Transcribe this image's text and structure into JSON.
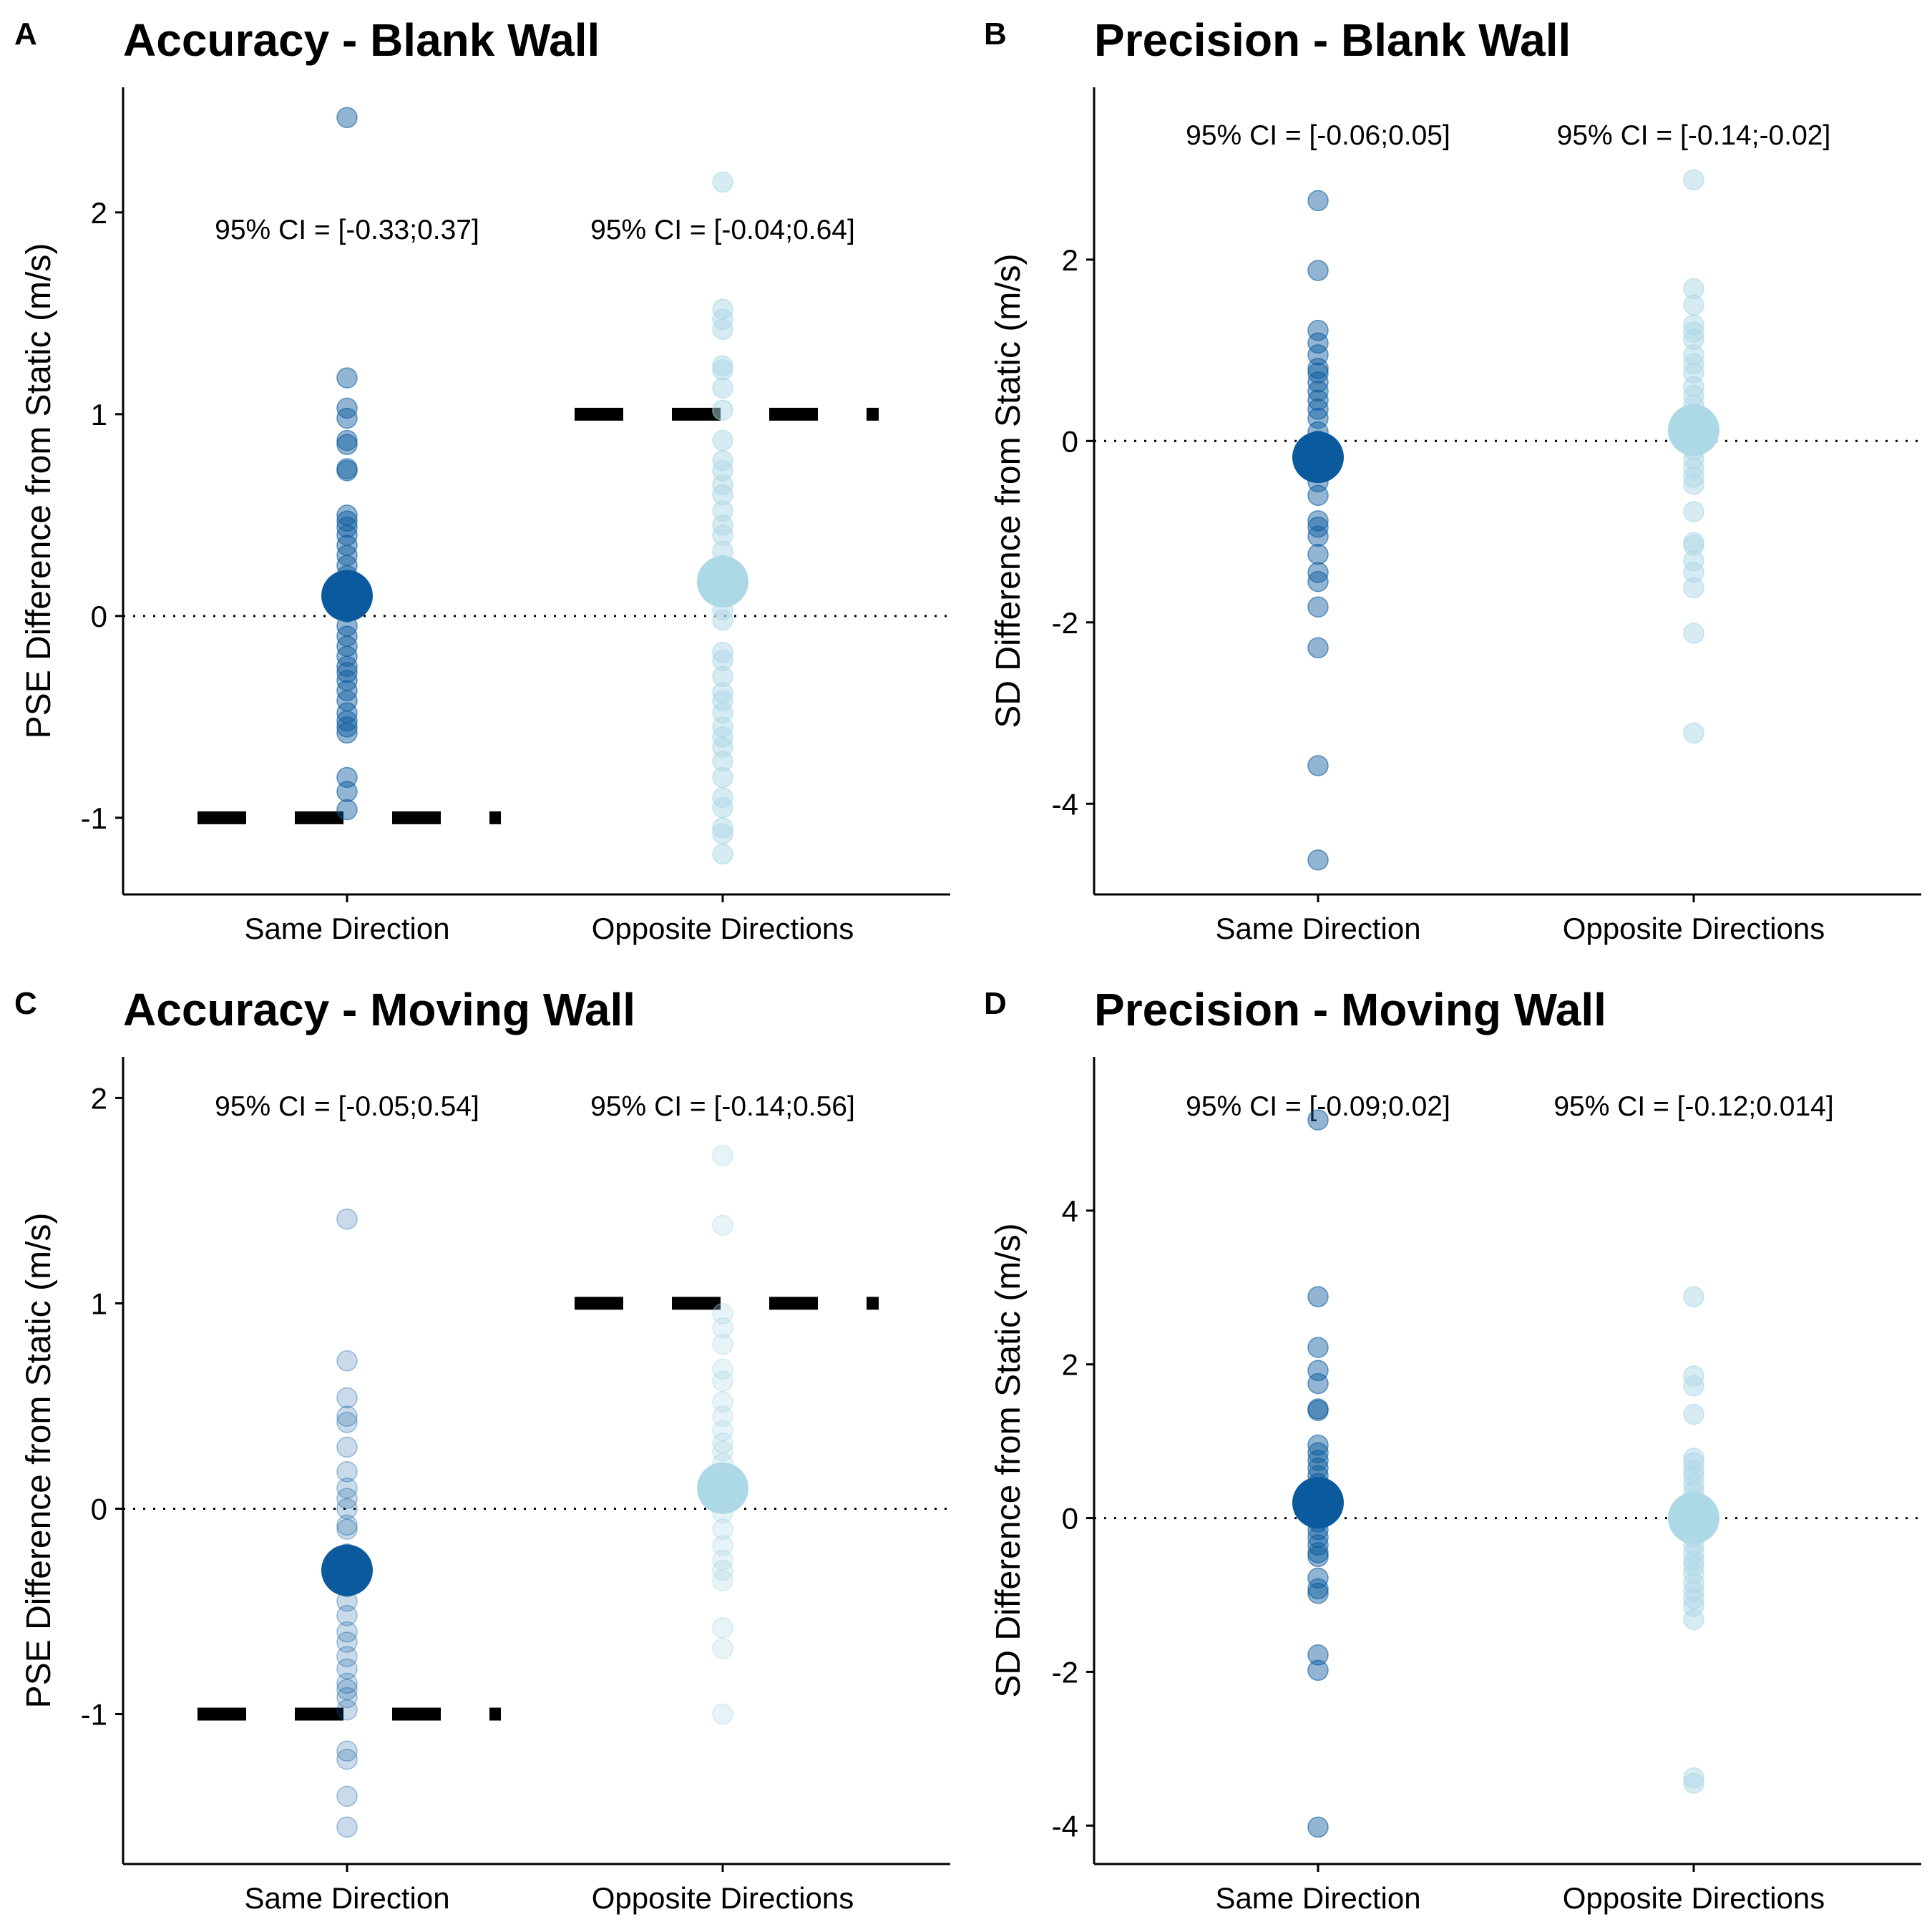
{
  "colors": {
    "same": "#0b5a9e",
    "opposite": "#add8e6"
  },
  "chart_data": [
    {
      "letter": "A",
      "title": "Accuracy - Blank Wall",
      "type": "scatter",
      "ylabel": "PSE Difference from Static (m/s)",
      "categories": [
        "Same Direction",
        "Opposite Directions"
      ],
      "ylim": [
        -1.38,
        2.62
      ],
      "yticks": [
        -1,
        0,
        1,
        2
      ],
      "zero_line": 0,
      "reference_lines": [
        {
          "category": "Same Direction",
          "y": -1
        },
        {
          "category": "Opposite Directions",
          "y": 1
        }
      ],
      "ci_labels": [
        "95% CI = [-0.33;0.37]",
        "95% CI = [-0.04;0.64]"
      ],
      "series": [
        {
          "category": "Same Direction",
          "color_key": "same",
          "point_opacity": 0.45,
          "mean": 0.1,
          "points": [
            2.47,
            1.18,
            1.03,
            0.98,
            0.87,
            0.85,
            0.73,
            0.72,
            0.5,
            0.47,
            0.44,
            0.4,
            0.35,
            0.3,
            0.25,
            0.2,
            0.15,
            0.1,
            0.05,
            0.02,
            -0.05,
            -0.1,
            -0.15,
            -0.2,
            -0.25,
            -0.28,
            -0.32,
            -0.37,
            -0.42,
            -0.48,
            -0.52,
            -0.55,
            -0.58,
            -0.8,
            -0.87,
            -0.96
          ]
        },
        {
          "category": "Opposite Directions",
          "color_key": "opposite",
          "point_opacity": 0.5,
          "mean": 0.17,
          "points": [
            2.15,
            1.52,
            1.47,
            1.42,
            1.24,
            1.22,
            1.13,
            1.02,
            0.87,
            0.77,
            0.72,
            0.65,
            0.6,
            0.52,
            0.45,
            0.4,
            0.32,
            0.25,
            0.15,
            0.1,
            0.03,
            -0.02,
            -0.18,
            -0.22,
            -0.3,
            -0.38,
            -0.42,
            -0.48,
            -0.55,
            -0.6,
            -0.65,
            -0.72,
            -0.8,
            -0.9,
            -0.95,
            -1.05,
            -1.08,
            -1.18
          ]
        }
      ]
    },
    {
      "letter": "B",
      "title": "Precision - Blank Wall",
      "type": "scatter",
      "ylabel": "SD Difference from Static (m/s)",
      "categories": [
        "Same Direction",
        "Opposite Directions"
      ],
      "ylim": [
        -5.0,
        3.9
      ],
      "yticks": [
        -4,
        -2,
        0,
        2
      ],
      "zero_line": 0,
      "reference_lines": [],
      "ci_labels": [
        "95% CI = [-0.06;0.05]",
        "95% CI = [-0.14;-0.02]"
      ],
      "series": [
        {
          "category": "Same Direction",
          "color_key": "same",
          "point_opacity": 0.45,
          "mean": -0.18,
          "points": [
            2.65,
            1.88,
            1.22,
            1.08,
            0.95,
            0.8,
            0.75,
            0.65,
            0.55,
            0.45,
            0.35,
            0.25,
            0.1,
            0.0,
            -0.1,
            -0.2,
            -0.35,
            -0.45,
            -0.6,
            -0.88,
            -0.95,
            -1.05,
            -1.25,
            -1.45,
            -1.55,
            -1.83,
            -2.28,
            -3.58,
            -4.62
          ]
        },
        {
          "category": "Opposite Directions",
          "color_key": "opposite",
          "point_opacity": 0.5,
          "mean": 0.12,
          "points": [
            2.88,
            1.68,
            1.5,
            1.28,
            1.2,
            1.12,
            0.95,
            0.85,
            0.75,
            0.6,
            0.5,
            0.4,
            0.3,
            0.2,
            0.05,
            -0.1,
            -0.2,
            -0.3,
            -0.4,
            -0.48,
            -0.78,
            -1.12,
            -1.15,
            -1.32,
            -1.45,
            -1.62,
            -2.12,
            -3.22
          ]
        }
      ]
    },
    {
      "letter": "C",
      "title": "Accuracy - Moving Wall",
      "type": "scatter",
      "ylabel": "PSE Difference from Static (m/s)",
      "categories": [
        "Same Direction",
        "Opposite Directions"
      ],
      "ylim": [
        -1.73,
        2.2
      ],
      "yticks": [
        -1,
        0,
        1,
        2
      ],
      "zero_line": 0,
      "reference_lines": [
        {
          "category": "Same Direction",
          "y": -1
        },
        {
          "category": "Opposite Directions",
          "y": 1
        }
      ],
      "ci_labels": [
        "95% CI = [-0.05;0.54]",
        "95% CI = [-0.14;0.56]"
      ],
      "series": [
        {
          "category": "Same Direction",
          "color_key": "same",
          "point_opacity": 0.22,
          "mean": -0.3,
          "points": [
            1.41,
            0.72,
            0.54,
            0.45,
            0.42,
            0.3,
            0.18,
            0.1,
            0.05,
            0.0,
            -0.08,
            -0.1,
            -0.22,
            -0.3,
            -0.38,
            -0.45,
            -0.52,
            -0.6,
            -0.65,
            -0.72,
            -0.78,
            -0.85,
            -0.88,
            -0.92,
            -0.98,
            -1.18,
            -1.22,
            -1.4,
            -1.55
          ]
        },
        {
          "category": "Opposite Directions",
          "color_key": "opposite",
          "point_opacity": 0.3,
          "mean": 0.1,
          "points": [
            1.72,
            1.38,
            0.95,
            0.88,
            0.8,
            0.68,
            0.62,
            0.52,
            0.45,
            0.38,
            0.32,
            0.28,
            0.22,
            0.15,
            0.1,
            0.05,
            -0.02,
            -0.1,
            -0.18,
            -0.25,
            -0.3,
            -0.35,
            -0.58,
            -0.68,
            -1.0
          ]
        }
      ]
    },
    {
      "letter": "D",
      "title": "Precision - Moving Wall",
      "type": "scatter",
      "ylabel": "SD Difference from Static (m/s)",
      "categories": [
        "Same Direction",
        "Opposite Directions"
      ],
      "ylim": [
        -4.5,
        6.0
      ],
      "yticks": [
        -4,
        -2,
        0,
        2,
        4
      ],
      "zero_line": 0,
      "reference_lines": [],
      "ci_labels": [
        "95% CI = [-0.09;0.02]",
        "95% CI = [-0.12;0.014]"
      ],
      "series": [
        {
          "category": "Same Direction",
          "color_key": "same",
          "point_opacity": 0.45,
          "mean": 0.2,
          "points": [
            5.18,
            2.88,
            2.22,
            1.92,
            1.75,
            1.42,
            1.4,
            0.95,
            0.85,
            0.75,
            0.65,
            0.55,
            0.45,
            0.35,
            0.25,
            0.15,
            0.05,
            -0.05,
            -0.15,
            -0.25,
            -0.35,
            -0.45,
            -0.5,
            -0.78,
            -0.92,
            -0.98,
            -1.78,
            -1.98,
            -4.02
          ]
        },
        {
          "category": "Opposite Directions",
          "color_key": "opposite",
          "point_opacity": 0.5,
          "mean": 0.0,
          "points": [
            2.88,
            1.85,
            1.72,
            1.35,
            0.78,
            0.72,
            0.62,
            0.55,
            0.45,
            0.35,
            0.25,
            0.15,
            0.05,
            -0.05,
            -0.15,
            -0.25,
            -0.35,
            -0.45,
            -0.55,
            -0.62,
            -0.72,
            -0.85,
            -0.95,
            -1.05,
            -1.15,
            -1.32,
            -3.38,
            -3.45
          ]
        }
      ]
    }
  ]
}
